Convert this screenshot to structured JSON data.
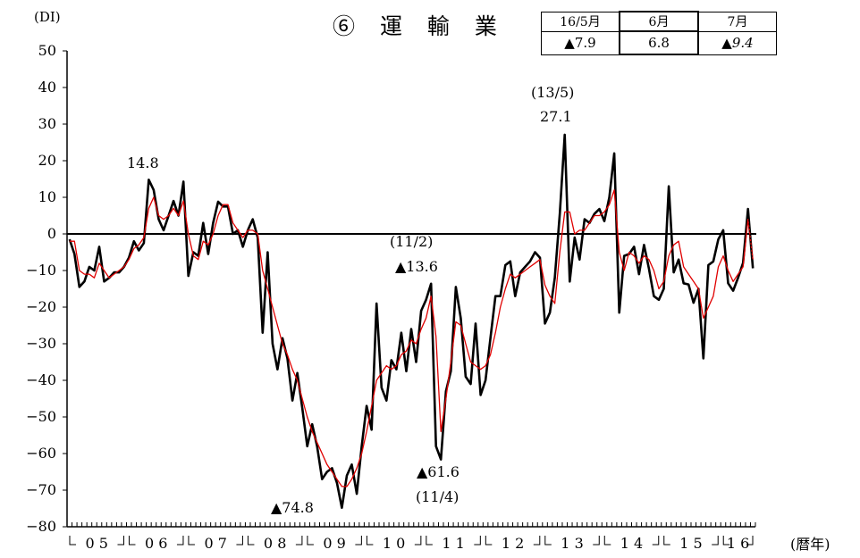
{
  "header": {
    "title": "⑥ 運 輸 業",
    "unit": "(DI)",
    "x_unit": "(暦年)"
  },
  "summary_table": {
    "months": [
      "16/5月",
      "6月",
      "7月"
    ],
    "values": [
      "▲7.9",
      "6.8",
      "▲9.4"
    ]
  },
  "annotations": {
    "peak_2006": "14.8",
    "low_2008_09": "▲74.8",
    "date_11_2": "(11/2)",
    "value_11_2": "▲13.6",
    "value_11_4": "▲61.6",
    "date_11_4": "(11/4)",
    "date_13_5": "(13/5)",
    "value_13_5": "27.1"
  },
  "chart_data": {
    "type": "line",
    "ylim": [
      -80,
      50
    ],
    "yticks": [
      50,
      40,
      30,
      20,
      10,
      0,
      -10,
      -20,
      -30,
      -40,
      -50,
      -60,
      -70,
      -80
    ],
    "ytick_labels": [
      "50",
      "40",
      "30",
      "20",
      "10",
      "0",
      "−10",
      "−20",
      "−30",
      "−40",
      "−50",
      "−60",
      "−70",
      "−80"
    ],
    "x_start": "2005-01",
    "x_end": "2016-07",
    "year_labels": [
      "0 5",
      "0 6",
      "0 7",
      "0 8",
      "0 9",
      "1 0",
      "1 1",
      "1 2",
      "1 3",
      "1 4",
      "1 5",
      "1 6"
    ],
    "series": [
      {
        "color": "#000000",
        "values": [
          -1.5,
          -5.5,
          -14.5,
          -13,
          -9,
          -10,
          -3.5,
          -13,
          -12,
          -10.5,
          -10.5,
          -9,
          -6.5,
          -2,
          -4.5,
          -2.5,
          14.8,
          12,
          4,
          1,
          5,
          9,
          5,
          14.3,
          -11.5,
          -5,
          -6,
          3,
          -5.5,
          3,
          8.8,
          7.5,
          7.5,
          0,
          1,
          -3.5,
          1,
          4,
          -1,
          -27,
          -5,
          -30,
          -37,
          -28.5,
          -34,
          -45.5,
          -38,
          -47.5,
          -58,
          -52,
          -58,
          -67,
          -65,
          -64,
          -68,
          -74.8,
          -66,
          -63,
          -71,
          -58,
          -47,
          -53.5,
          -19,
          -42,
          -45.5,
          -34.5,
          -37,
          -27,
          -37.5,
          -26,
          -35,
          -21,
          -18,
          -13.6,
          -58,
          -61.6,
          -43,
          -37.5,
          -14.5,
          -23,
          -39,
          -41,
          -24.5,
          -44,
          -40,
          -28.5,
          -17,
          -17,
          -8.5,
          -7.5,
          -17,
          -10.5,
          -9,
          -7.5,
          -5,
          -6.5,
          -24.5,
          -21.5,
          -12,
          5.5,
          27.1,
          -13,
          -1,
          -7,
          4,
          3,
          5.5,
          6.8,
          3.5,
          10,
          22,
          -21.5,
          -6,
          -5.5,
          -3.5,
          -11,
          -3,
          -9.5,
          -17,
          -18,
          -15,
          13,
          -10.5,
          -7,
          -13.5,
          -13.8,
          -18.8,
          -15,
          -34,
          -8.5,
          -7.5,
          -1.5,
          1,
          -13.5,
          -15.5,
          -12,
          -7.9,
          6.8,
          -9.4
        ]
      },
      {
        "color": "#e00000",
        "values": [
          -2,
          -2,
          -10,
          -11,
          -11,
          -12,
          -8,
          -10,
          -12,
          -11,
          -10,
          -9,
          -7,
          -4,
          -3,
          -1,
          7,
          10,
          5,
          4,
          5,
          7,
          5,
          9,
          0,
          -6,
          -7,
          -2,
          -3,
          0,
          5,
          8,
          8,
          3,
          1,
          -1,
          1,
          1,
          0,
          -10,
          -15,
          -20,
          -25,
          -30,
          -33,
          -37,
          -40,
          -45,
          -50,
          -54,
          -57,
          -60,
          -63,
          -65,
          -67,
          -69,
          -69,
          -67,
          -64,
          -60,
          -54,
          -47,
          -40,
          -38,
          -36,
          -37,
          -36,
          -33,
          -32,
          -29,
          -30,
          -26,
          -23,
          -17,
          -28,
          -54,
          -45,
          -35,
          -24,
          -25,
          -30,
          -35,
          -36,
          -37,
          -36,
          -33,
          -27,
          -20,
          -15,
          -11,
          -12,
          -11,
          -10,
          -9,
          -8,
          -7,
          -14,
          -17,
          -19,
          -5,
          6,
          6,
          0,
          1,
          1,
          3,
          5,
          5,
          6,
          8,
          12,
          -5,
          -10,
          -5,
          -6,
          -8,
          -6,
          -7,
          -10,
          -15,
          -13,
          -6,
          -3,
          -2,
          -9,
          -11,
          -13,
          -15,
          -23,
          -20,
          -17,
          -9,
          -6,
          -10,
          -13,
          -11,
          -9,
          4,
          -7
        ]
      },
      {
        "color": "#000000",
        "dashed": true,
        "values": [
          6.8,
          -9.4
        ]
      }
    ]
  }
}
